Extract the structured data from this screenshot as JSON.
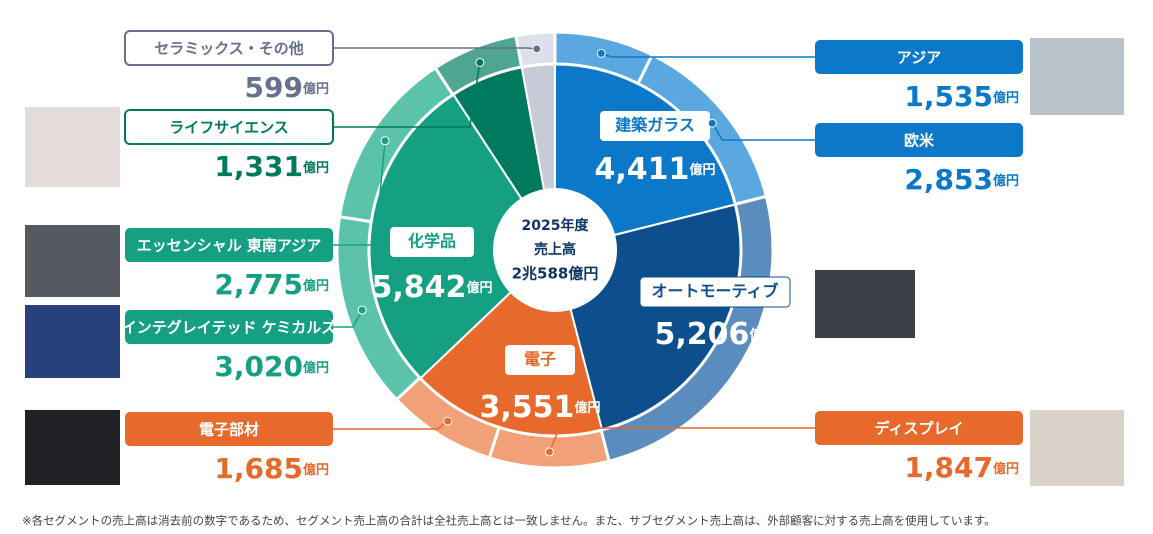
{
  "chart_data": {
    "type": "donut",
    "center_label": [
      "2025年度",
      "売上高",
      "2兆588億円"
    ],
    "unit": "億円",
    "segments": [
      {
        "name": "建築ガラス",
        "value": 4411,
        "value_label": "4,411",
        "color": "#0b78c9",
        "ring_color": "#5aa8df",
        "label_color": "#0b78c9",
        "subsegments": [
          {
            "name": "アジア",
            "value": 1535,
            "value_label": "1,535"
          },
          {
            "name": "欧米",
            "value": 2853,
            "value_label": "2,853"
          }
        ]
      },
      {
        "name": "オートモーティブ",
        "value": 5206,
        "value_label": "5,206",
        "color": "#0d4f8c",
        "ring_color": "#5a8dbd",
        "label_color": "#0d4f8c"
      },
      {
        "name": "電子",
        "value": 3551,
        "value_label": "3,551",
        "color": "#e8692c",
        "ring_color": "#f1a078",
        "label_color": "#e8692c",
        "subsegments": [
          {
            "name": "ディスプレイ",
            "value": 1847,
            "value_label": "1,847"
          },
          {
            "name": "電子部材",
            "value": 1685,
            "value_label": "1,685"
          }
        ]
      },
      {
        "name": "化学品",
        "value": 5842,
        "value_label": "5,842",
        "color": "#16a083",
        "ring_color": "#5cc3ab",
        "label_color": "#16a083",
        "subsegments": [
          {
            "name": "インテグレイテッド ケミカルズ",
            "value": 3020,
            "value_label": "3,020"
          },
          {
            "name": "エッセンシャル 東南アジア",
            "value": 2775,
            "value_label": "2,775"
          }
        ]
      },
      {
        "name": "ライフサイエンス",
        "value": 1331,
        "value_label": "1,331",
        "color": "#007a5f",
        "ring_color": "#4ea590",
        "label_color": "#007a5f"
      },
      {
        "name": "セラミックス・その他",
        "value": 599,
        "value_label": "599",
        "color": "#c6cbd7",
        "ring_color": "#dde0e8",
        "label_color": "#67708d"
      }
    ],
    "footnote": "※各セグメントの売上高は消去前の数字であるため、セグメント売上高の合計は全社売上高とは一致しません。また、サブセグメント売上高は、外部顧客に対する売上高を使用しています。"
  }
}
